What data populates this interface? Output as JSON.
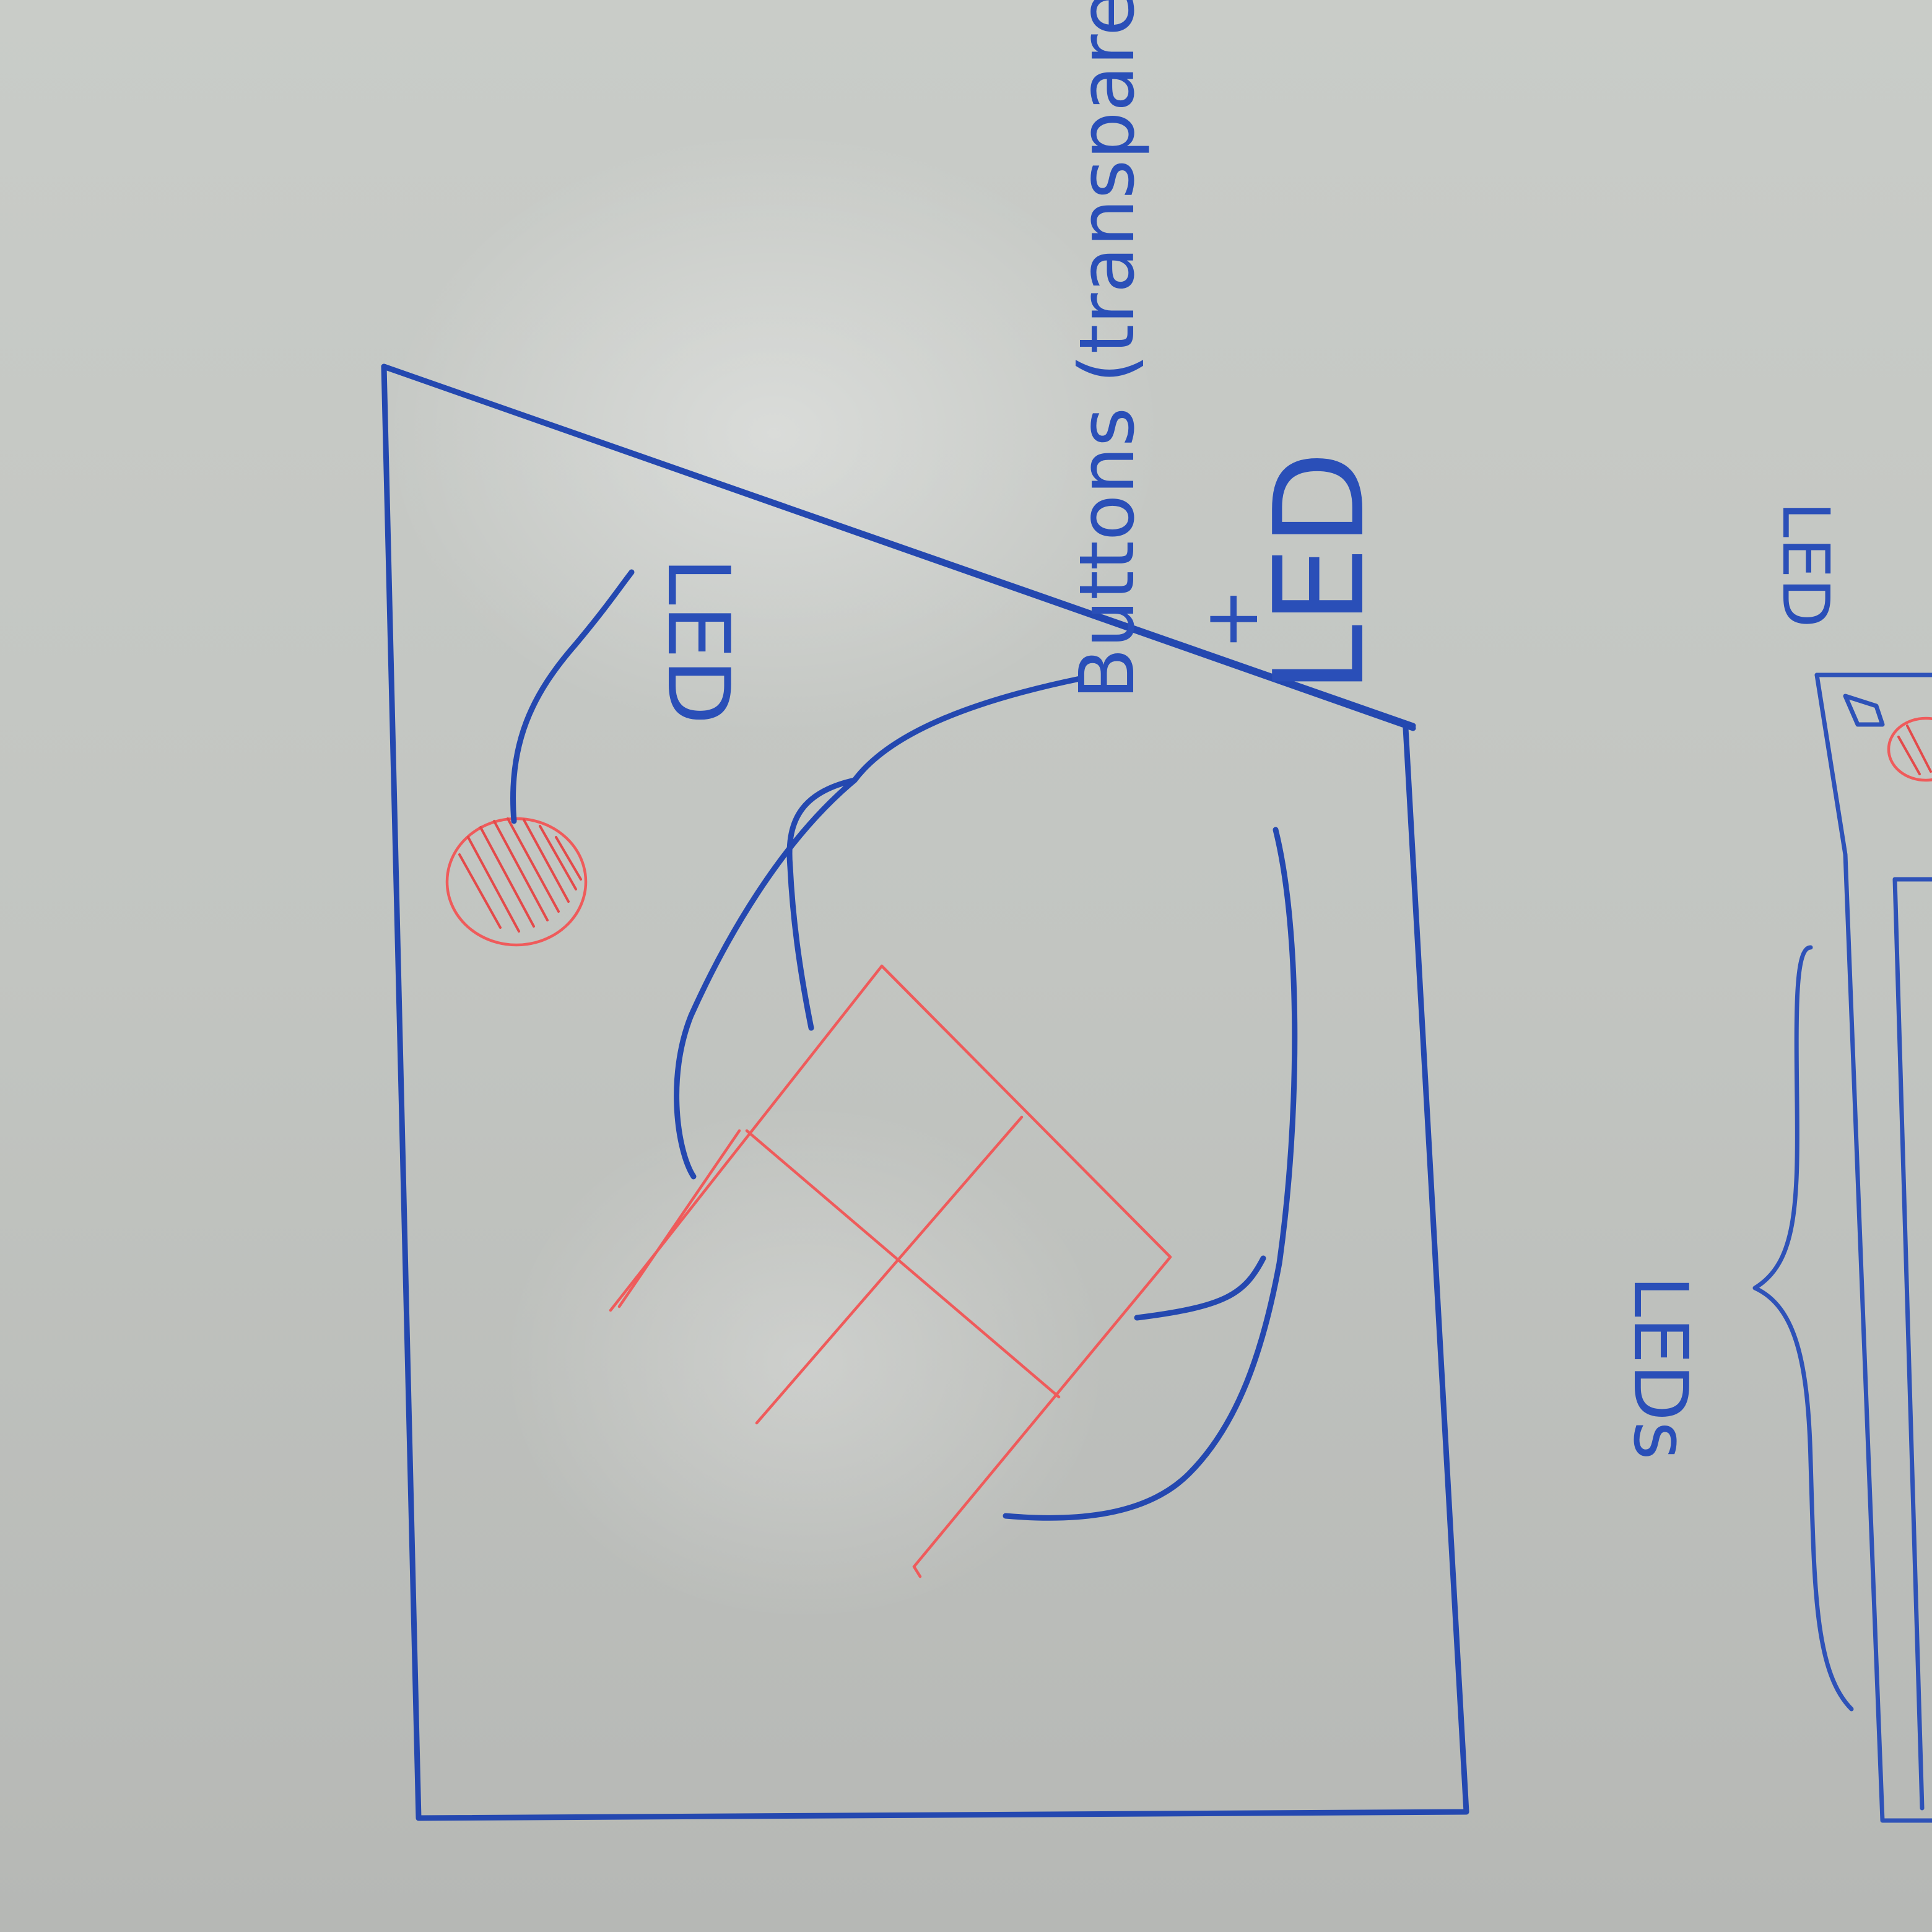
{
  "labels": {
    "led_top": "LED",
    "buttons": "Buttons (transparent)",
    "plus": "+",
    "led_buttons": "LED",
    "led_right": "LED",
    "leds_bottom": "LEDs"
  },
  "colors": {
    "whiteboard": "#c5c8c4",
    "marker_blue": "#2448b0",
    "marker_red": "#ef5b5b"
  }
}
